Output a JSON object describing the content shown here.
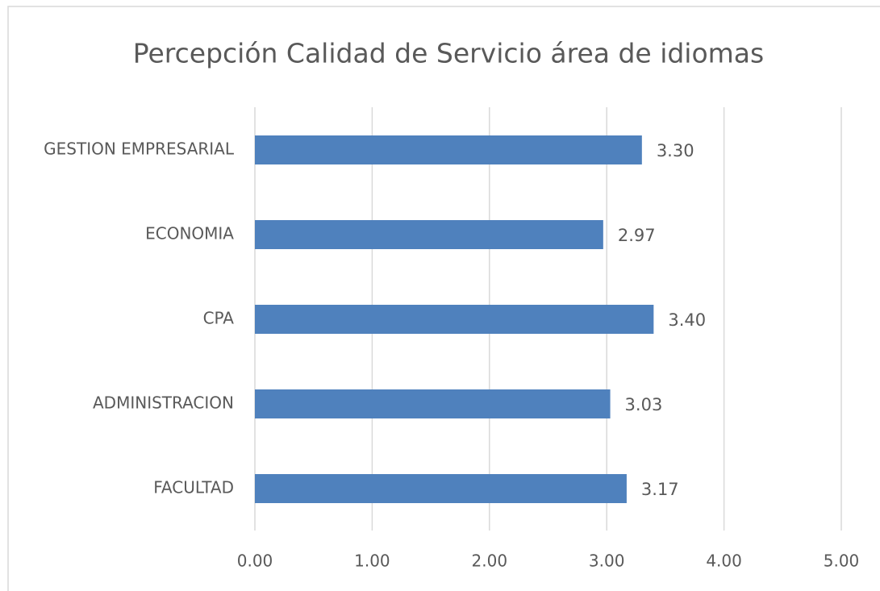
{
  "chart_data": {
    "type": "hbar",
    "title": "Percepción Calidad de Servicio área de idiomas",
    "categories": [
      "GESTION EMPRESARIAL",
      "ECONOMIA",
      "CPA",
      "ADMINISTRACION",
      "FACULTAD"
    ],
    "values": [
      3.3,
      2.97,
      3.4,
      3.03,
      3.17
    ],
    "value_labels": [
      "3.30",
      "2.97",
      "3.40",
      "3.03",
      "3.17"
    ],
    "color": "#4f81bd",
    "xlim": [
      0,
      5
    ],
    "xticks": [
      {
        "value": 0,
        "label": "0.00"
      },
      {
        "value": 1,
        "label": "1.00"
      },
      {
        "value": 2,
        "label": "2.00"
      },
      {
        "value": 3,
        "label": "3.00"
      },
      {
        "value": 4,
        "label": "4.00"
      },
      {
        "value": 5,
        "label": "5.00"
      }
    ],
    "grid": true
  }
}
